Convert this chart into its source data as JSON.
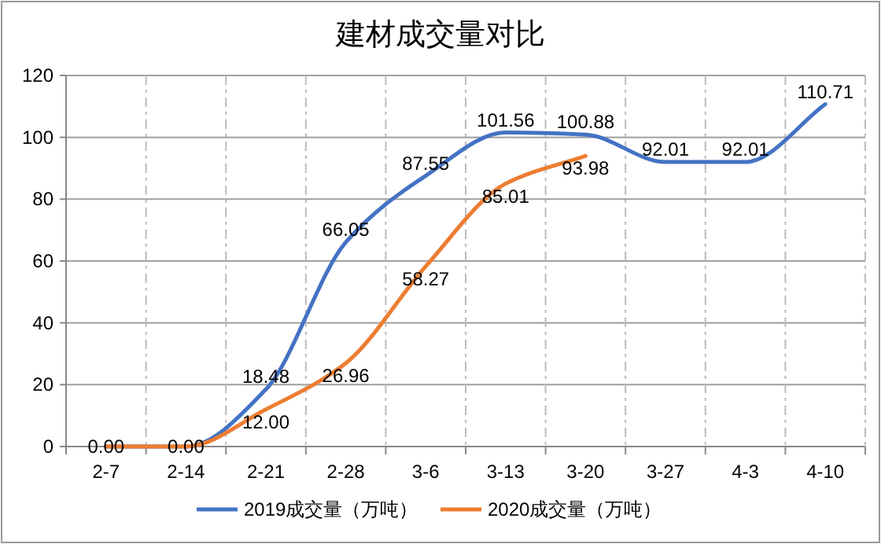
{
  "chart_data": {
    "type": "line",
    "title": "建材成交量对比",
    "categories": [
      "2-7",
      "2-14",
      "2-21",
      "2-28",
      "3-6",
      "3-13",
      "3-20",
      "3-27",
      "4-3",
      "4-10"
    ],
    "series": [
      {
        "name": "2019成交量（万吨）",
        "color": "#4472c4",
        "values": [
          0.0,
          0.0,
          18.48,
          66.05,
          87.55,
          101.56,
          100.88,
          92.01,
          92.01,
          110.71
        ],
        "value_labels": [
          "0.00",
          "0.00",
          "18.48",
          "66.05",
          "87.55",
          "101.56",
          "100.88",
          "92.01",
          "92.01",
          "110.71"
        ]
      },
      {
        "name": "2020成交量（万吨）",
        "color": "#ed7d31",
        "values": [
          0.0,
          0.0,
          12.0,
          26.96,
          58.27,
          85.01,
          93.98,
          null,
          null,
          null
        ],
        "value_labels": [
          null,
          null,
          "12.00",
          "26.96",
          "58.27",
          "85.01",
          "93.98",
          null,
          null,
          null
        ]
      }
    ],
    "ylim": [
      0,
      120
    ],
    "yticks": [
      0,
      20,
      40,
      60,
      80,
      100,
      120
    ],
    "grid": true,
    "legend": "bottom",
    "marker": "none",
    "line_style": "solid"
  }
}
